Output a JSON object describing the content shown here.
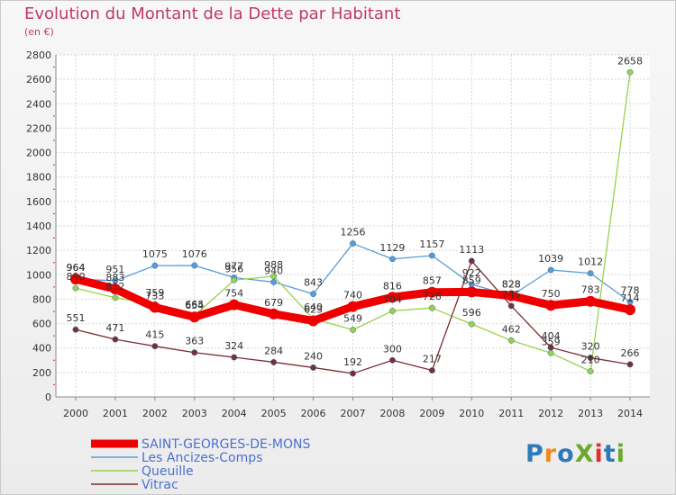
{
  "title": "Evolution du Montant de la Dette par Habitant",
  "unit": "(en €)",
  "logo": {
    "text": "ProXiti",
    "colors": [
      "#2f78b9",
      "#f08a1c",
      "#2f78b9",
      "#6aaa2f",
      "#e0302c",
      "#2f78b9",
      "#6aaa2f"
    ]
  },
  "chart_data": {
    "type": "line",
    "x": [
      "2000",
      "2001",
      "2002",
      "2003",
      "2004",
      "2005",
      "2006",
      "2007",
      "2008",
      "2009",
      "2010",
      "2011",
      "2012",
      "2013",
      "2014"
    ],
    "ylim": [
      0,
      2800
    ],
    "yticks": [
      0,
      200,
      400,
      600,
      800,
      1000,
      1200,
      1400,
      1600,
      1800,
      2000,
      2200,
      2400,
      2600,
      2800
    ],
    "grid": true,
    "legend_position": "bottom-left",
    "series": [
      {
        "name": "SAINT-GEORGES-DE-MONS",
        "color": "#ee0000",
        "values": [
          964,
          883,
          733,
          654,
          754,
          679,
          623,
          740,
          816,
          857,
          859,
          828,
          750,
          783,
          714
        ]
      },
      {
        "name": "Les Ancizes-Comps",
        "color": "#5a9bd4",
        "values": [
          964,
          951,
          1075,
          1076,
          977,
          940,
          843,
          1256,
          1129,
          1157,
          922,
          828,
          1039,
          1012,
          778
        ]
      },
      {
        "name": "Queuille",
        "color": "#9ad14b",
        "values": [
          890,
          812,
          759,
          665,
          956,
          988,
          640,
          549,
          704,
          728,
          596,
          462,
          359,
          210,
          2658
        ]
      },
      {
        "name": "Vitrac",
        "color": "#7a2f33",
        "values": [
          551,
          471,
          415,
          363,
          324,
          284,
          240,
          192,
          300,
          217,
          1113,
          745,
          404,
          320,
          266
        ]
      }
    ]
  }
}
